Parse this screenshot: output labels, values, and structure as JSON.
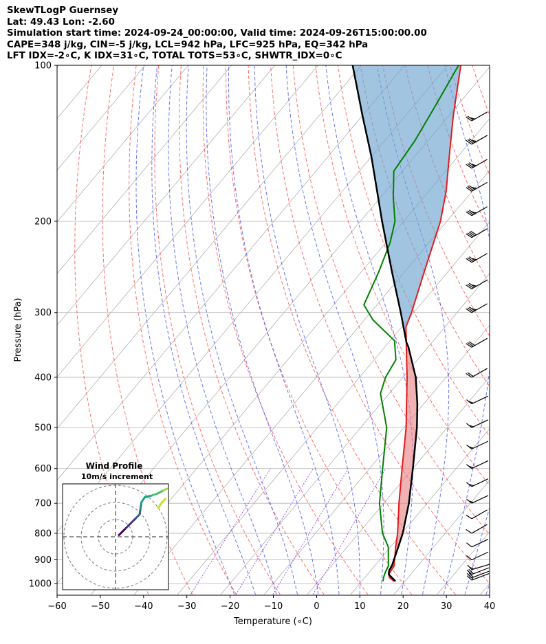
{
  "header": {
    "line1": "SkewTLogP Guernsey",
    "line2": "Lat: 49.43   Lon: -2.60",
    "line3": "Simulation start time: 2024-09-24_00:00:00, Valid time: 2024-09-26T15:00:00.00",
    "line4": "CAPE=348 j/kg, CIN=-5 j/kg, LCL=942 hPa, LFC=925 hPa, EQ=342 hPa",
    "line5": "LFT IDX=-2∘C, K IDX=31∘C, TOTAL TOTS=53∘C, SHWTR_IDX=0∘C"
  },
  "colors": {
    "temperature": "#e41a1c",
    "dewpoint": "#008000",
    "parcel": "#000000",
    "cape_fill": "#6fa4cf",
    "cin_fill": "#e8888b",
    "dry_adiabat": "#ff3030",
    "moist_adiabat": "#2a3cf0",
    "mixing_ratio": "#8a2be2",
    "isotherm": "#808080",
    "grid": "#b0b0b0"
  },
  "chart_data": {
    "type": "skewt-logp",
    "xlabel": "Temperature (∘C)",
    "ylabel": "Pressure (hPa)",
    "xlim": [
      -60,
      40
    ],
    "ylim": [
      1050,
      100
    ],
    "x_ticks": [
      -60,
      -50,
      -40,
      -30,
      -20,
      -10,
      0,
      10,
      20,
      30,
      40
    ],
    "x_tick_labels": [
      "−60",
      "−50",
      "−40",
      "−30",
      "−20",
      "−10",
      "0",
      "10",
      "20",
      "30",
      "40"
    ],
    "y_ticks": [
      1000,
      900,
      800,
      700,
      600,
      500,
      400,
      300,
      200,
      100
    ],
    "y_tick_labels": [
      "1000",
      "900",
      "800",
      "700",
      "600",
      "500",
      "400",
      "300",
      "200",
      "100"
    ],
    "temperature_profile": [
      {
        "p": 990,
        "t": 17.5
      },
      {
        "p": 975,
        "t": 15.8
      },
      {
        "p": 960,
        "t": 14.9
      },
      {
        "p": 925,
        "t": 14.5
      },
      {
        "p": 850,
        "t": 11.2
      },
      {
        "p": 800,
        "t": 9.0
      },
      {
        "p": 700,
        "t": 3.5
      },
      {
        "p": 600,
        "t": -2.5
      },
      {
        "p": 500,
        "t": -9.5
      },
      {
        "p": 450,
        "t": -14.0
      },
      {
        "p": 400,
        "t": -19.0
      },
      {
        "p": 350,
        "t": -25.0
      },
      {
        "p": 342,
        "t": -26.0
      },
      {
        "p": 320,
        "t": -29.0
      },
      {
        "p": 300,
        "t": -30.5
      },
      {
        "p": 250,
        "t": -35.5
      },
      {
        "p": 200,
        "t": -41.5
      },
      {
        "p": 175,
        "t": -46.0
      },
      {
        "p": 150,
        "t": -52.0
      },
      {
        "p": 125,
        "t": -59.0
      },
      {
        "p": 100,
        "t": -67.0
      }
    ],
    "dewpoint_profile": [
      {
        "p": 990,
        "t": 14.9
      },
      {
        "p": 970,
        "t": 14.2
      },
      {
        "p": 950,
        "t": 13.7
      },
      {
        "p": 925,
        "t": 13.2
      },
      {
        "p": 850,
        "t": 9.5
      },
      {
        "p": 800,
        "t": 5.5
      },
      {
        "p": 700,
        "t": -1.0
      },
      {
        "p": 600,
        "t": -7.0
      },
      {
        "p": 500,
        "t": -14.0
      },
      {
        "p": 430,
        "t": -22.0
      },
      {
        "p": 400,
        "t": -24.0
      },
      {
        "p": 370,
        "t": -25.0
      },
      {
        "p": 340,
        "t": -29.0
      },
      {
        "p": 310,
        "t": -38.0
      },
      {
        "p": 290,
        "t": -43.0
      },
      {
        "p": 250,
        "t": -46.0
      },
      {
        "p": 220,
        "t": -49.0
      },
      {
        "p": 200,
        "t": -52.0
      },
      {
        "p": 180,
        "t": -57.0
      },
      {
        "p": 160,
        "t": -62.0
      },
      {
        "p": 140,
        "t": -63.0
      },
      {
        "p": 120,
        "t": -65.0
      },
      {
        "p": 100,
        "t": -67.5
      }
    ],
    "parcel_profile": [
      {
        "p": 990,
        "t": 17.8
      },
      {
        "p": 960,
        "t": 14.9
      },
      {
        "p": 942,
        "t": 14.2
      },
      {
        "p": 925,
        "t": 14.0
      },
      {
        "p": 850,
        "t": 11.8
      },
      {
        "p": 800,
        "t": 10.2
      },
      {
        "p": 700,
        "t": 5.8
      },
      {
        "p": 600,
        "t": 0.0
      },
      {
        "p": 500,
        "t": -7.0
      },
      {
        "p": 450,
        "t": -11.5
      },
      {
        "p": 400,
        "t": -17.0
      },
      {
        "p": 350,
        "t": -24.5
      },
      {
        "p": 342,
        "t": -26.0
      },
      {
        "p": 300,
        "t": -33.0
      },
      {
        "p": 250,
        "t": -43.0
      },
      {
        "p": 200,
        "t": -55.0
      },
      {
        "p": 150,
        "t": -70.0
      },
      {
        "p": 125,
        "t": -80.0
      },
      {
        "p": 100,
        "t": -92.0
      }
    ],
    "wind_profile": [
      {
        "p": 985,
        "speed_kt": 20,
        "dir_deg": 245
      },
      {
        "p": 975,
        "speed_kt": 20,
        "dir_deg": 245
      },
      {
        "p": 960,
        "speed_kt": 20,
        "dir_deg": 245
      },
      {
        "p": 940,
        "speed_kt": 15,
        "dir_deg": 250
      },
      {
        "p": 900,
        "speed_kt": 10,
        "dir_deg": 240
      },
      {
        "p": 850,
        "speed_kt": 10,
        "dir_deg": 240
      },
      {
        "p": 800,
        "speed_kt": 10,
        "dir_deg": 235
      },
      {
        "p": 750,
        "speed_kt": 10,
        "dir_deg": 235
      },
      {
        "p": 700,
        "speed_kt": 15,
        "dir_deg": 240
      },
      {
        "p": 650,
        "speed_kt": 15,
        "dir_deg": 240
      },
      {
        "p": 600,
        "speed_kt": 15,
        "dir_deg": 240
      },
      {
        "p": 550,
        "speed_kt": 15,
        "dir_deg": 240
      },
      {
        "p": 500,
        "speed_kt": 15,
        "dir_deg": 240
      },
      {
        "p": 450,
        "speed_kt": 15,
        "dir_deg": 240
      },
      {
        "p": 400,
        "speed_kt": 20,
        "dir_deg": 235
      },
      {
        "p": 350,
        "speed_kt": 30,
        "dir_deg": 235
      },
      {
        "p": 300,
        "speed_kt": 35,
        "dir_deg": 235
      },
      {
        "p": 270,
        "speed_kt": 35,
        "dir_deg": 235
      },
      {
        "p": 240,
        "speed_kt": 35,
        "dir_deg": 235
      },
      {
        "p": 215,
        "speed_kt": 40,
        "dir_deg": 235
      },
      {
        "p": 195,
        "speed_kt": 35,
        "dir_deg": 235
      },
      {
        "p": 175,
        "speed_kt": 35,
        "dir_deg": 235
      },
      {
        "p": 158,
        "speed_kt": 35,
        "dir_deg": 235
      },
      {
        "p": 142,
        "speed_kt": 35,
        "dir_deg": 235
      },
      {
        "p": 128,
        "speed_kt": 25,
        "dir_deg": 235
      }
    ],
    "hodograph": {
      "title": "Wind Profile",
      "subtitle": "10m/s increment",
      "ring_step_ms": 10,
      "points_uv": [
        [
          2,
          1
        ],
        [
          4,
          3
        ],
        [
          6,
          5
        ],
        [
          9,
          8
        ],
        [
          12,
          11
        ],
        [
          14,
          13
        ],
        [
          14.5,
          16
        ],
        [
          15,
          20
        ],
        [
          17,
          23
        ],
        [
          21,
          24
        ],
        [
          24,
          25
        ],
        [
          28,
          27
        ],
        [
          30,
          28
        ]
      ],
      "tail_points_uv": [
        [
          25,
          17
        ],
        [
          27,
          20
        ],
        [
          29,
          22
        ]
      ]
    }
  }
}
